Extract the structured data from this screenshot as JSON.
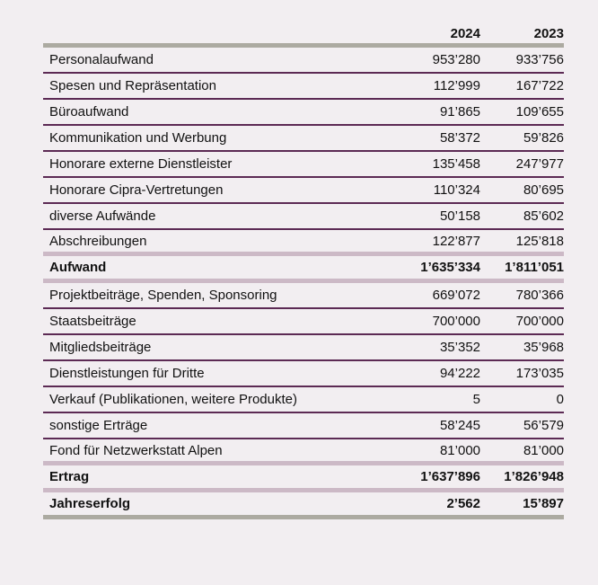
{
  "colors": {
    "background": "#f2eef1",
    "row_divider": "#5c2a54",
    "section_divider": "#ccb9c6",
    "outer_divider": "#acaaa1",
    "text": "#111111"
  },
  "table": {
    "columns": [
      "2024",
      "2023"
    ],
    "rows": [
      {
        "label": "Personalaufwand",
        "v2024": "953’280",
        "v2023": "933’756",
        "bold": false,
        "divider_after": "purple"
      },
      {
        "label": "Spesen und Repräsentation",
        "v2024": "112’999",
        "v2023": "167’722",
        "bold": false,
        "divider_after": "purple"
      },
      {
        "label": "Büroaufwand",
        "v2024": "91’865",
        "v2023": "109’655",
        "bold": false,
        "divider_after": "purple"
      },
      {
        "label": "Kommunikation und Werbung",
        "v2024": "58’372",
        "v2023": "59’826",
        "bold": false,
        "divider_after": "purple"
      },
      {
        "label": "Honorare externe Dienstleister",
        "v2024": "135’458",
        "v2023": "247’977",
        "bold": false,
        "divider_after": "purple"
      },
      {
        "label": "Honorare Cipra-Vertretungen",
        "v2024": "110’324",
        "v2023": "80’695",
        "bold": false,
        "divider_after": "purple"
      },
      {
        "label": "diverse Aufwände",
        "v2024": "50’158",
        "v2023": "85’602",
        "bold": false,
        "divider_after": "purple"
      },
      {
        "label": "Abschreibungen",
        "v2024": "122’877",
        "v2023": "125’818",
        "bold": false,
        "divider_after": "mauve"
      },
      {
        "label": "Aufwand",
        "v2024": "1’635’334",
        "v2023": "1’811’051",
        "bold": true,
        "divider_after": "mauve"
      },
      {
        "label": "Projektbeiträge, Spenden, Sponsoring",
        "v2024": "669’072",
        "v2023": "780’366",
        "bold": false,
        "divider_after": "purple"
      },
      {
        "label": "Staatsbeiträge",
        "v2024": "700’000",
        "v2023": "700’000",
        "bold": false,
        "divider_after": "purple"
      },
      {
        "label": "Mitgliedsbeiträge",
        "v2024": "35’352",
        "v2023": "35’968",
        "bold": false,
        "divider_after": "purple"
      },
      {
        "label": "Dienstleistungen für Dritte",
        "v2024": "94’222",
        "v2023": "173’035",
        "bold": false,
        "divider_after": "purple"
      },
      {
        "label": "Verkauf (Publikationen, weitere Produkte)",
        "v2024": "5",
        "v2023": "0",
        "bold": false,
        "divider_after": "purple"
      },
      {
        "label": "sonstige Erträge",
        "v2024": "58’245",
        "v2023": "56’579",
        "bold": false,
        "divider_after": "purple"
      },
      {
        "label": "Fond für Netzwerkstatt Alpen",
        "v2024": "81’000",
        "v2023": "81’000",
        "bold": false,
        "divider_after": "mauve"
      },
      {
        "label": "Ertrag",
        "v2024": "1’637’896",
        "v2023": "1’826’948",
        "bold": true,
        "divider_after": "mauve"
      },
      {
        "label": "Jahreserfolg",
        "v2024": "2’562",
        "v2023": "15’897",
        "bold": true,
        "divider_after": "gray"
      }
    ]
  }
}
